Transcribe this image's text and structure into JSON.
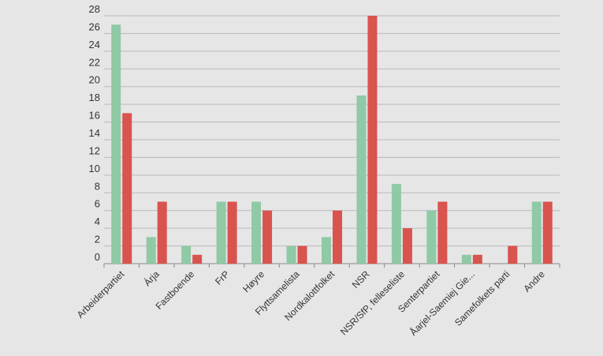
{
  "chart_data": {
    "type": "bar",
    "categories": [
      "Arbeiderpartiet",
      "Árja",
      "Fastboende",
      "FrP",
      "Høyre",
      "Flyttsamelista",
      "Nordkalottfolket",
      "NSR",
      "NSR/SfP, felleseliste",
      "Senterpartiet",
      "Åarjel-Saemiej Gie...",
      "Samefolkets parti",
      "Andre"
    ],
    "series": [
      {
        "color": "#8fc9a5",
        "values": [
          27,
          3,
          2,
          7,
          7,
          2,
          3,
          19,
          9,
          6,
          1,
          0,
          7
        ]
      },
      {
        "color": "#d9534f",
        "values": [
          17,
          7,
          1,
          7,
          6,
          2,
          6,
          28,
          4,
          7,
          1,
          2,
          7
        ]
      }
    ],
    "yticks": [
      0,
      2,
      4,
      6,
      8,
      10,
      12,
      14,
      16,
      18,
      20,
      22,
      24,
      26,
      28
    ],
    "ylim": [
      0,
      28
    ],
    "grid": true,
    "title": "",
    "xlabel": "",
    "ylabel": ""
  }
}
